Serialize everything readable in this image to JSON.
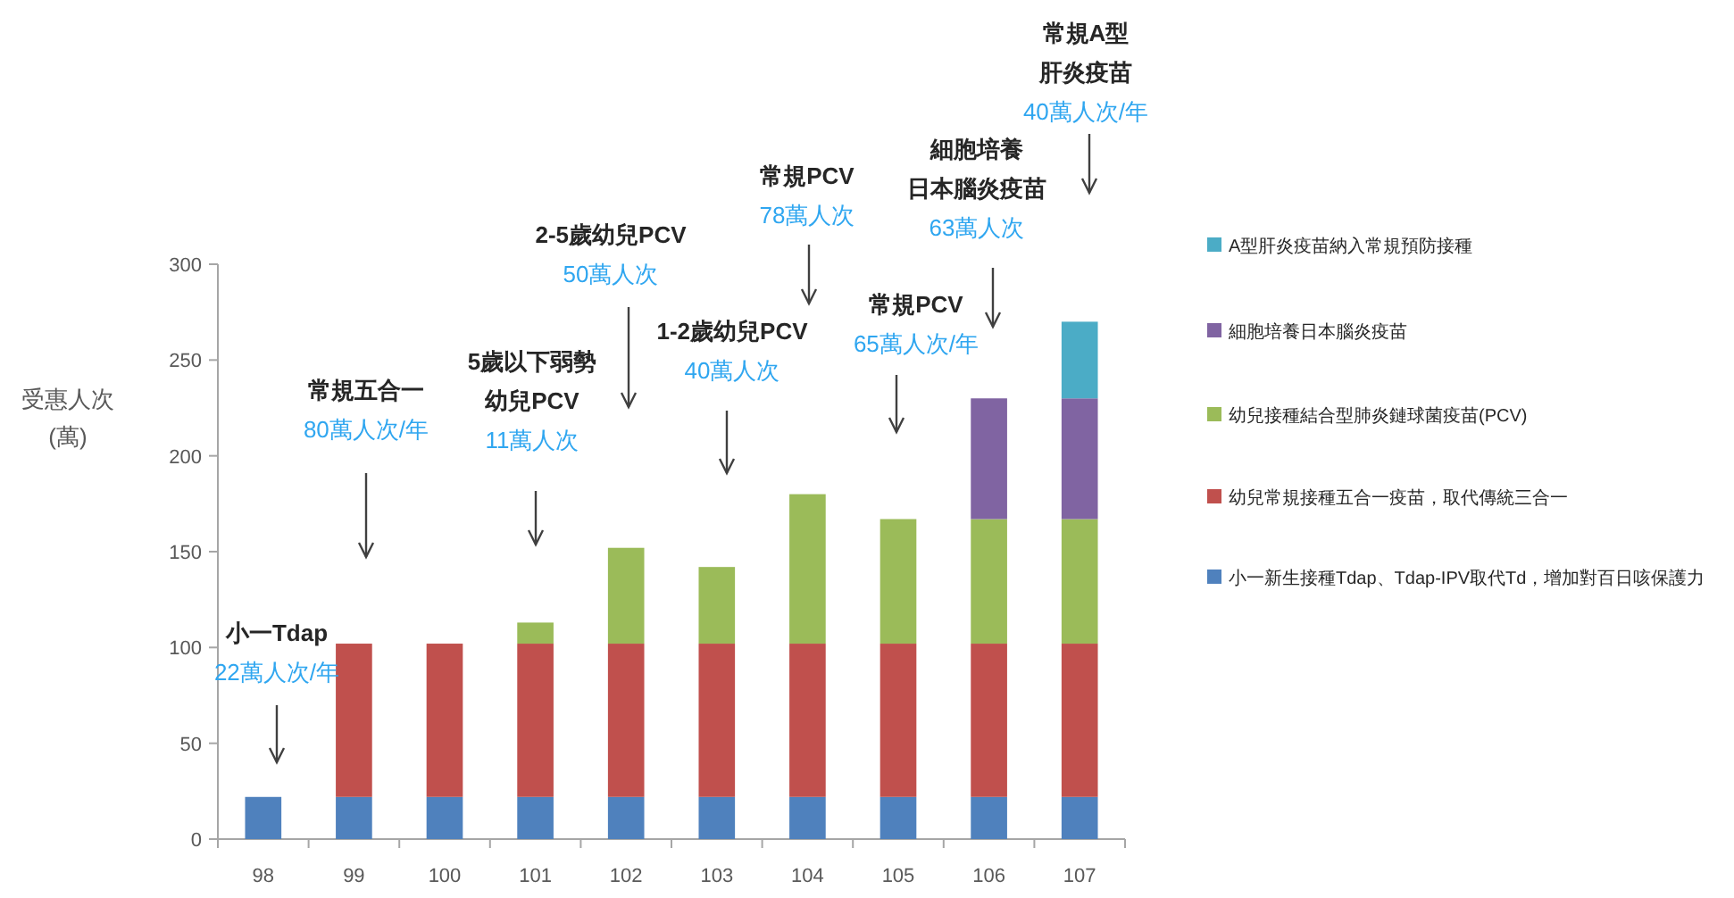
{
  "chart_data": {
    "type": "bar",
    "stacked": true,
    "ylabel": "受惠人次\n(萬)",
    "categories": [
      "98",
      "99",
      "100",
      "101",
      "102",
      "103",
      "104",
      "105",
      "106",
      "107"
    ],
    "series": [
      {
        "name": "小一新生接種Tdap、Tdap-IPV取代Td，增加對百日咳保護力",
        "color": "#4f81bd",
        "values": [
          22,
          22,
          22,
          22,
          22,
          22,
          22,
          22,
          22,
          22
        ]
      },
      {
        "name": "幼兒常規接種五合一疫苗，取代傳統三合一",
        "color": "#c0504d",
        "values": [
          null,
          80,
          80,
          80,
          80,
          80,
          80,
          80,
          80,
          80
        ]
      },
      {
        "name": "幼兒接種結合型肺炎鏈球菌疫苗(PCV)",
        "color": "#9bbb59",
        "values": [
          null,
          null,
          null,
          11,
          50,
          40,
          78,
          65,
          65,
          65
        ]
      },
      {
        "name": "細胞培養日本腦炎疫苗",
        "color": "#8064a2",
        "values": [
          null,
          null,
          null,
          null,
          null,
          null,
          null,
          null,
          63,
          63
        ]
      },
      {
        "name": "A型肝炎疫苗納入常規預防接種",
        "color": "#4bacc6",
        "values": [
          null,
          null,
          null,
          null,
          null,
          null,
          null,
          null,
          null,
          40
        ]
      }
    ],
    "ylim": [
      0,
      300
    ],
    "yticks": [
      0,
      50,
      100,
      150,
      200,
      250,
      300
    ],
    "grid": false,
    "legend": "right",
    "annotations": [
      "小一Tdap\n22萬人次/年",
      "常規五合一\n80萬人次/年",
      "5歲以下弱勢幼兒PCV\n11萬人次",
      "2-5歲幼兒PCV\n50萬人次",
      "1-2歲幼兒PCV\n40萬人次",
      "常規PCV\n78萬人次",
      "常規PCV\n65萬人次/年",
      "細胞培養日本腦炎疫苗\n63萬人次",
      "常規A型肝炎疫苗\n40萬人次/年"
    ]
  }
}
